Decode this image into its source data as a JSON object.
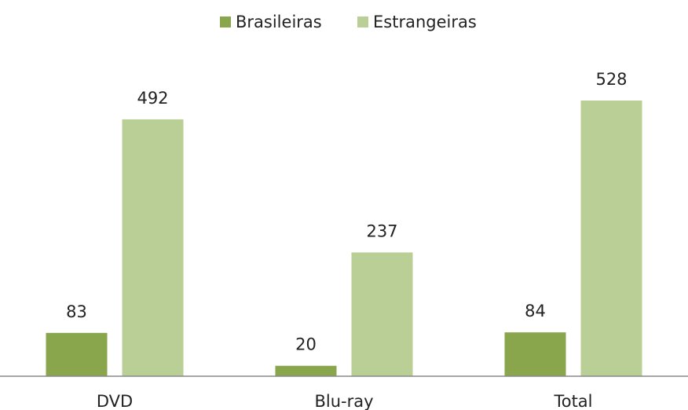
{
  "chart_data": {
    "type": "bar",
    "categories": [
      "DVD",
      "Blu-ray",
      "Total"
    ],
    "series": [
      {
        "name": "Brasileiras",
        "color": "#8aa64c",
        "values": [
          83,
          20,
          84
        ]
      },
      {
        "name": "Estrangeiras",
        "color": "#b9cf96",
        "values": [
          492,
          237,
          528
        ]
      }
    ]
  }
}
